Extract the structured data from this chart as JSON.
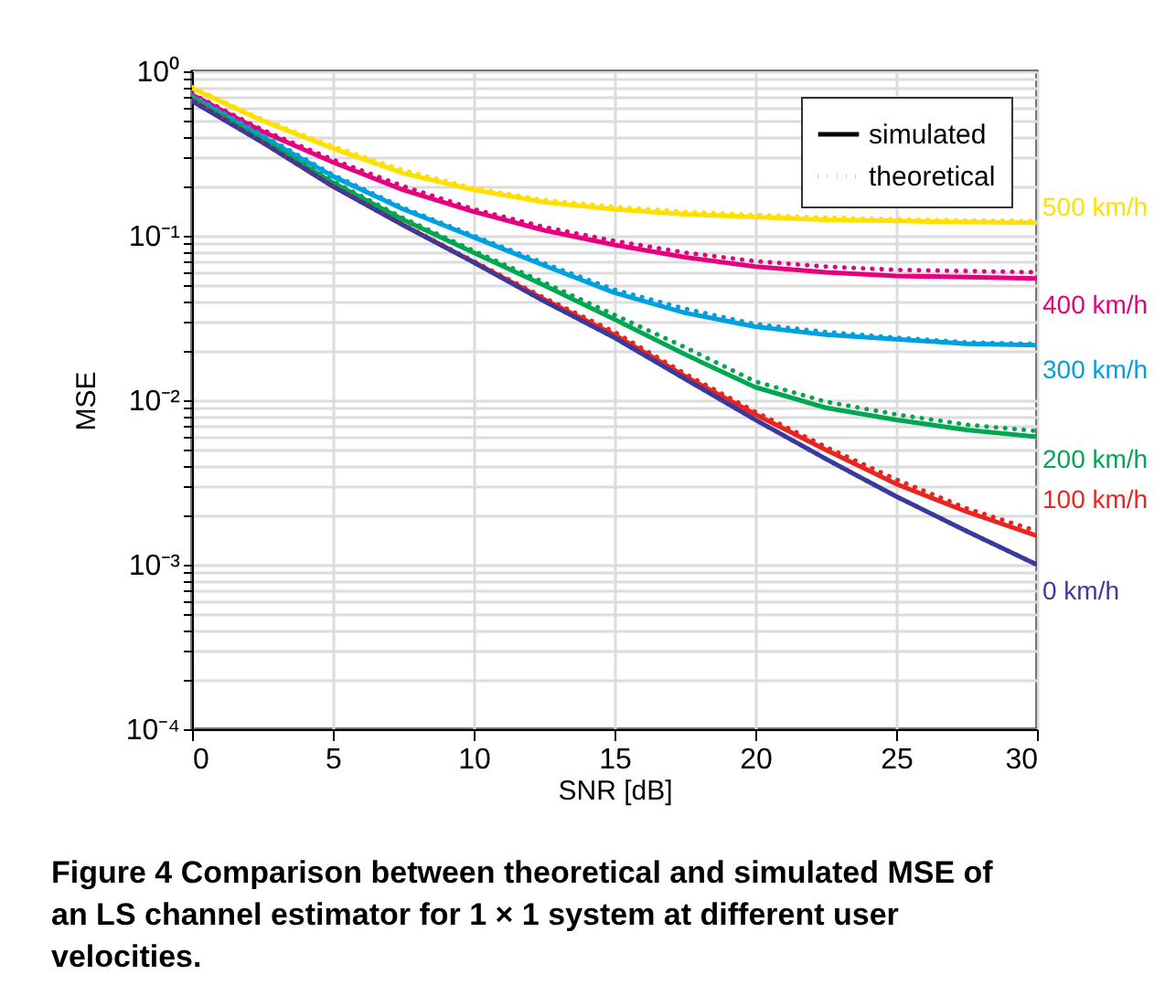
{
  "chart_data": {
    "type": "line",
    "xlabel": "SNR [dB]",
    "ylabel": "MSE",
    "log": true,
    "grid": true,
    "legend": "top right",
    "annotations": [
      "Figure 4 Comparison between theoretical and simulated MSE of an LS channel estimator for 1 × 1 system at different user velocities."
    ],
    "xlim": [
      0,
      30
    ],
    "xticks": [
      0,
      5,
      10,
      15,
      20,
      25,
      30
    ],
    "ylim": [
      0.0001,
      1
    ],
    "yticks": [
      {
        "value": 0.0001,
        "label": "10⁻⁴"
      },
      {
        "value": 0.0002,
        "label": null
      },
      {
        "value": 0.0003,
        "label": null
      },
      {
        "value": 0.0004,
        "label": null
      },
      {
        "value": 0.0005,
        "label": null
      },
      {
        "value": 0.0006,
        "label": null
      },
      {
        "value": 0.0007,
        "label": null
      },
      {
        "value": 0.0008,
        "label": null
      },
      {
        "value": 0.0009,
        "label": null
      },
      {
        "value": 0.001,
        "label": "10⁻³"
      },
      {
        "value": 0.002,
        "label": null
      },
      {
        "value": 0.003,
        "label": null
      },
      {
        "value": 0.004,
        "label": null
      },
      {
        "value": 0.005,
        "label": null
      },
      {
        "value": 0.006,
        "label": null
      },
      {
        "value": 0.007,
        "label": null
      },
      {
        "value": 0.008,
        "label": null
      },
      {
        "value": 0.009,
        "label": null
      },
      {
        "value": 0.01,
        "label": "10⁻²"
      },
      {
        "value": 0.02,
        "label": null
      },
      {
        "value": 0.03,
        "label": null
      },
      {
        "value": 0.04,
        "label": null
      },
      {
        "value": 0.05,
        "label": null
      },
      {
        "value": 0.06,
        "label": null
      },
      {
        "value": 0.07,
        "label": null
      },
      {
        "value": 0.08,
        "label": null
      },
      {
        "value": 0.09,
        "label": null
      },
      {
        "value": 0.1,
        "label": "10⁻¹"
      },
      {
        "value": 0.2,
        "label": null
      },
      {
        "value": 0.3,
        "label": null
      },
      {
        "value": 0.4,
        "label": null
      },
      {
        "value": 0.5,
        "label": null
      },
      {
        "value": 0.6,
        "label": null
      },
      {
        "value": 0.7,
        "label": null
      },
      {
        "value": 0.8,
        "label": null
      },
      {
        "value": 0.9,
        "label": null
      },
      {
        "value": 1,
        "label": "10⁰"
      }
    ],
    "x": [
      0,
      2.5,
      5,
      7.5,
      10,
      12.5,
      15,
      17.5,
      20,
      22.5,
      25,
      27.5,
      30
    ],
    "series": [
      {
        "name": "500 km/h",
        "color": "#ffe000",
        "line_style": "solid",
        "values": [
          0.79,
          0.5,
          0.34,
          0.24,
          0.19,
          0.16,
          0.145,
          0.135,
          0.13,
          0.125,
          0.123,
          0.121,
          0.12
        ]
      },
      {
        "name": "400 km/h",
        "color": "#e5007e",
        "line_style": "solid",
        "values": [
          0.72,
          0.43,
          0.28,
          0.19,
          0.14,
          0.108,
          0.088,
          0.074,
          0.065,
          0.06,
          0.057,
          0.056,
          0.055
        ]
      },
      {
        "name": "300 km/h",
        "color": "#00a0e0",
        "line_style": "solid",
        "values": [
          0.7,
          0.4,
          0.23,
          0.145,
          0.098,
          0.066,
          0.045,
          0.034,
          0.028,
          0.025,
          0.0235,
          0.022,
          0.0216
        ]
      },
      {
        "name": "200 km/h",
        "color": "#00a650",
        "line_style": "solid",
        "values": [
          0.68,
          0.38,
          0.21,
          0.125,
          0.079,
          0.05,
          0.031,
          0.019,
          0.012,
          0.009,
          0.0076,
          0.0066,
          0.006
        ]
      },
      {
        "name": "100 km/h",
        "color": "#e8251f",
        "line_style": "solid",
        "values": [
          0.67,
          0.37,
          0.2,
          0.116,
          0.069,
          0.041,
          0.025,
          0.014,
          0.0082,
          0.005,
          0.0031,
          0.0021,
          0.0015
        ]
      },
      {
        "name": "0 km/h",
        "color": "#3a3a9e",
        "line_style": "solid",
        "values": [
          0.66,
          0.37,
          0.2,
          0.116,
          0.069,
          0.04,
          0.024,
          0.0135,
          0.0076,
          0.0044,
          0.0026,
          0.0016,
          0.001
        ]
      },
      {
        "color": "#ffe000",
        "line_style": "dotted",
        "values": [
          0.8,
          0.51,
          0.35,
          0.25,
          0.195,
          0.165,
          0.15,
          0.14,
          0.134,
          0.129,
          0.126,
          0.124,
          0.123
        ]
      },
      {
        "color": "#e5007e",
        "line_style": "dotted",
        "values": [
          0.73,
          0.44,
          0.29,
          0.2,
          0.145,
          0.113,
          0.093,
          0.079,
          0.07,
          0.065,
          0.062,
          0.061,
          0.06
        ]
      },
      {
        "color": "#00a0e0",
        "line_style": "dotted",
        "values": [
          0.71,
          0.41,
          0.235,
          0.148,
          0.1,
          0.068,
          0.047,
          0.036,
          0.029,
          0.026,
          0.024,
          0.0225,
          0.022
        ]
      },
      {
        "color": "#00a650",
        "line_style": "dotted",
        "values": [
          0.69,
          0.39,
          0.215,
          0.128,
          0.081,
          0.052,
          0.033,
          0.021,
          0.013,
          0.0098,
          0.0082,
          0.0071,
          0.0065
        ]
      },
      {
        "color": "#e8251f",
        "line_style": "dotted",
        "values": [
          0.67,
          0.37,
          0.2,
          0.117,
          0.07,
          0.042,
          0.026,
          0.0145,
          0.0085,
          0.0052,
          0.0033,
          0.0022,
          0.0016
        ]
      },
      {
        "color": "#3a3a9e",
        "line_style": "dotted",
        "values": [
          0.66,
          0.37,
          0.2,
          0.116,
          0.069,
          0.04,
          0.024,
          0.0135,
          0.0076,
          0.0044,
          0.0026,
          0.0016,
          0.001
        ]
      },
      {
        "name": "simulated",
        "color": "#000000",
        "line_style": "solid",
        "values": [
          null,
          null,
          null,
          null,
          null,
          null,
          null,
          null,
          null,
          null,
          null,
          null,
          null
        ]
      },
      {
        "name": "theoretical",
        "color": "#000000",
        "line_style": "dotted",
        "values": [
          null,
          null,
          null,
          null,
          null,
          null,
          null,
          null,
          null,
          null,
          null,
          null,
          null
        ]
      }
    ]
  }
}
